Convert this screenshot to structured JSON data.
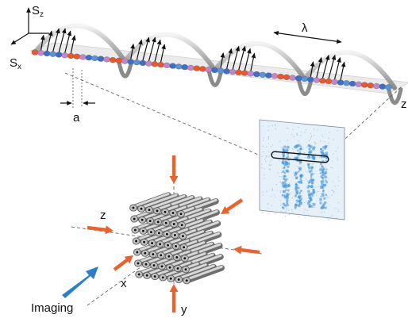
{
  "spin_chain": {
    "axis_spin_z": "S",
    "axis_spin_z_sub": "z",
    "axis_spin_x": "S",
    "axis_spin_x_sub": "x",
    "lattice_spacing_label": "a",
    "wavelength_label": "λ",
    "chain_axis_label": "z",
    "site_colors": [
      "#e8582e",
      "#c086c9",
      "#3f6fc4",
      "#5b93d6",
      "#3f6fc4",
      "#c086c9",
      "#e8582e"
    ]
  },
  "lattice": {
    "axis_z_label": "z",
    "axis_x_label": "x",
    "axis_y_label": "y",
    "beam_color": "#e8642f"
  },
  "imaging": {
    "label": "Imaging",
    "arrow_color": "#2b7fc9"
  },
  "absorption_image": {
    "stripe_count": 4,
    "stripe_color": "#3a8fd8"
  }
}
